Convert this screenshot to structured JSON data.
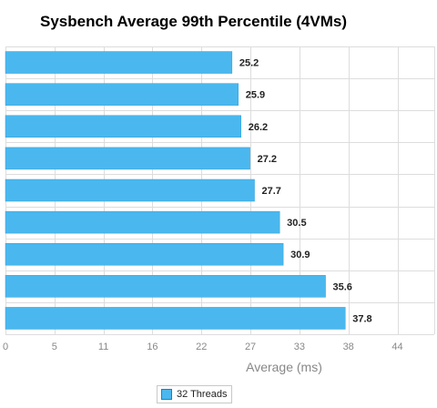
{
  "chart_data": {
    "type": "bar",
    "orientation": "horizontal",
    "title": "Sysbench Average 99th Percentile (4VMs)",
    "xlabel": "Average (ms)",
    "ylabel": "",
    "xlim": [
      0,
      47.7
    ],
    "ticks": [
      "0",
      "5",
      "11",
      "16",
      "22",
      "27",
      "33",
      "38",
      "44"
    ],
    "tick_values": [
      0,
      5.45,
      10.9,
      16.35,
      21.8,
      27.25,
      32.7,
      38.15,
      43.6
    ],
    "grid": true,
    "legend_position": "bottom",
    "series": [
      {
        "name": "32 Threads",
        "color": "#4ab8ee",
        "values": [
          25.2,
          25.9,
          26.2,
          27.2,
          27.7,
          30.5,
          30.9,
          35.6,
          37.8
        ]
      }
    ]
  }
}
